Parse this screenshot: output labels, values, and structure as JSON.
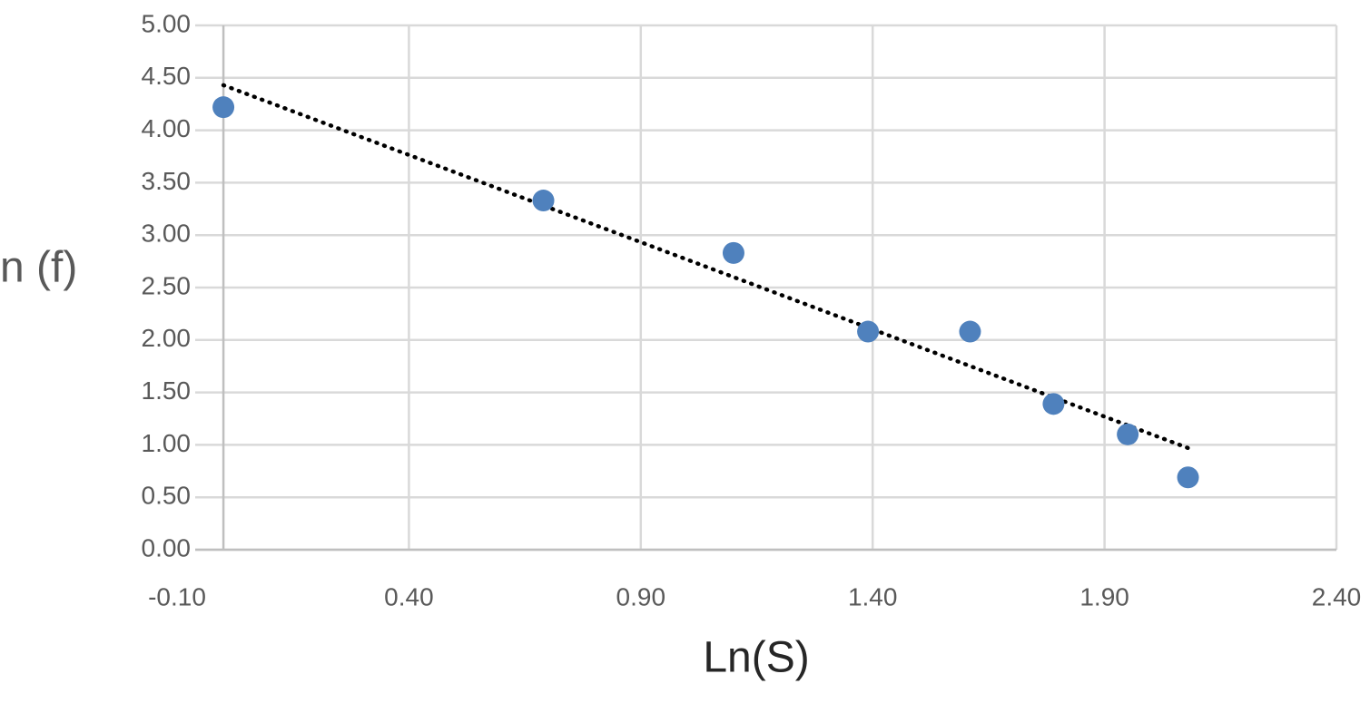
{
  "chart_data": {
    "type": "scatter",
    "x_label": "Ln(S)",
    "y_label": "n (f)",
    "series": [
      {
        "color": "#4f81bd",
        "x": [
          0,
          0.69,
          1.1,
          1.39,
          1.61,
          1.79,
          1.95,
          2.08
        ],
        "values": [
          4.22,
          3.33,
          2.83,
          2.08,
          2.08,
          1.39,
          1.1,
          0.69
        ]
      }
    ],
    "trendline": {
      "color": "#000000",
      "x": [
        0,
        2.08
      ],
      "values": [
        4.43,
        0.97
      ]
    },
    "xlim": [
      -0.1,
      2.4
    ],
    "xticks": [
      {
        "value": -0.1,
        "label": "-0.10"
      },
      {
        "value": 0.4,
        "label": "0.40"
      },
      {
        "value": 0.9,
        "label": "0.90"
      },
      {
        "value": 1.4,
        "label": "1.40"
      },
      {
        "value": 1.9,
        "label": "1.90"
      },
      {
        "value": 2.4,
        "label": "2.40"
      }
    ],
    "ylim": [
      0,
      5
    ],
    "yticks": [
      {
        "value": 0,
        "label": "0.00"
      },
      {
        "value": 0.5,
        "label": "0.50"
      },
      {
        "value": 1,
        "label": "1.00"
      },
      {
        "value": 1.5,
        "label": "1.50"
      },
      {
        "value": 2,
        "label": "2.00"
      },
      {
        "value": 2.5,
        "label": "2.50"
      },
      {
        "value": 3,
        "label": "3.00"
      },
      {
        "value": 3.5,
        "label": "3.50"
      },
      {
        "value": 4,
        "label": "4.00"
      },
      {
        "value": 4.5,
        "label": "4.50"
      },
      {
        "value": 5,
        "label": "5.00"
      }
    ],
    "grid": true
  }
}
